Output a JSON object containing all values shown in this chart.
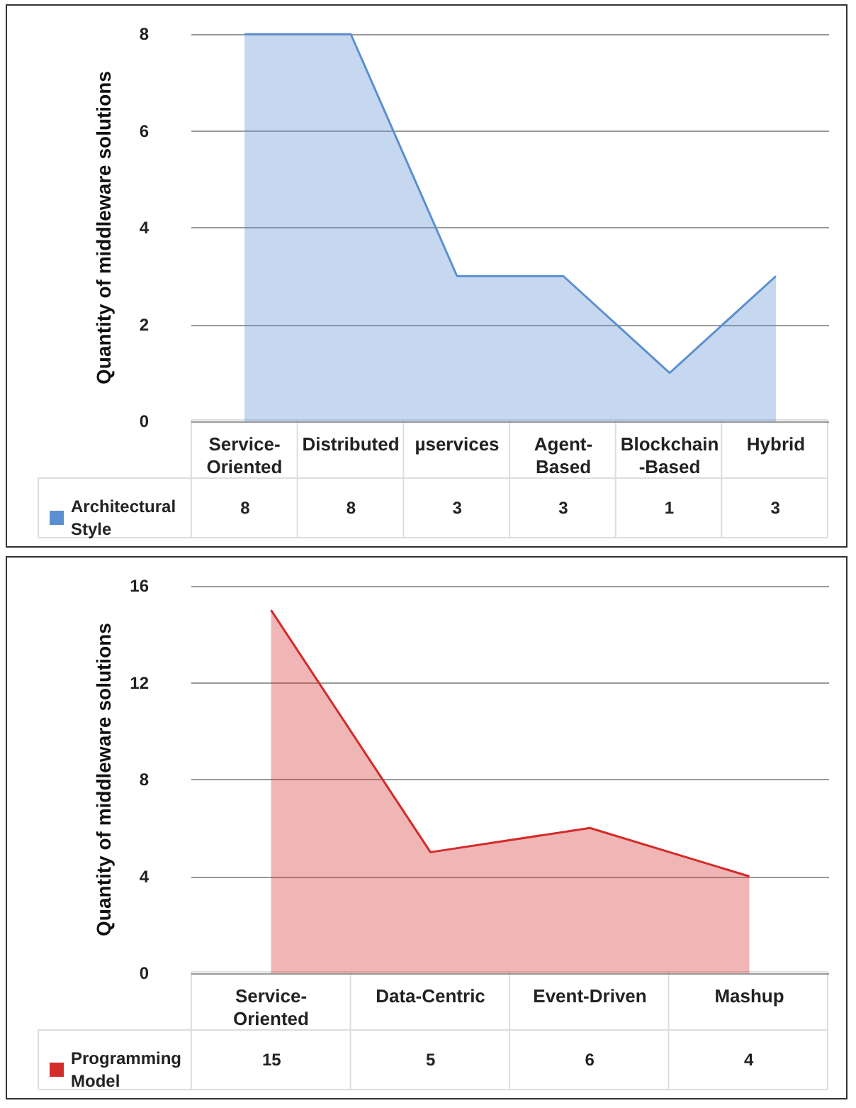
{
  "chart_data": [
    {
      "type": "area",
      "ylabel": "Quantity of middleware solutions",
      "categories": [
        "Service-Oriented",
        "Distributed",
        "µservices",
        "Agent-Based",
        "Blockchain-Based",
        "Hybrid"
      ],
      "series": [
        {
          "name": "Architectural Style",
          "color": "#5b8fd0",
          "values": [
            8,
            8,
            3,
            3,
            1,
            3
          ]
        }
      ],
      "ylim": [
        0,
        8
      ],
      "yticks": [
        0,
        2,
        4,
        6,
        8
      ],
      "grid": "y",
      "legend": "bottom left",
      "data_labels": true
    },
    {
      "type": "area",
      "ylabel": "Quantity of middleware solutions",
      "categories": [
        "Service-Oriented",
        "Data-Centric",
        "Event-Driven",
        "Mashup"
      ],
      "series": [
        {
          "name": "Programming Model",
          "color": "#d42b2b",
          "values": [
            15,
            5,
            6,
            4
          ]
        }
      ],
      "ylim": [
        0,
        16
      ],
      "yticks": [
        0,
        4,
        8,
        12,
        16
      ],
      "grid": "y",
      "legend": "bottom left",
      "data_labels": true
    }
  ]
}
